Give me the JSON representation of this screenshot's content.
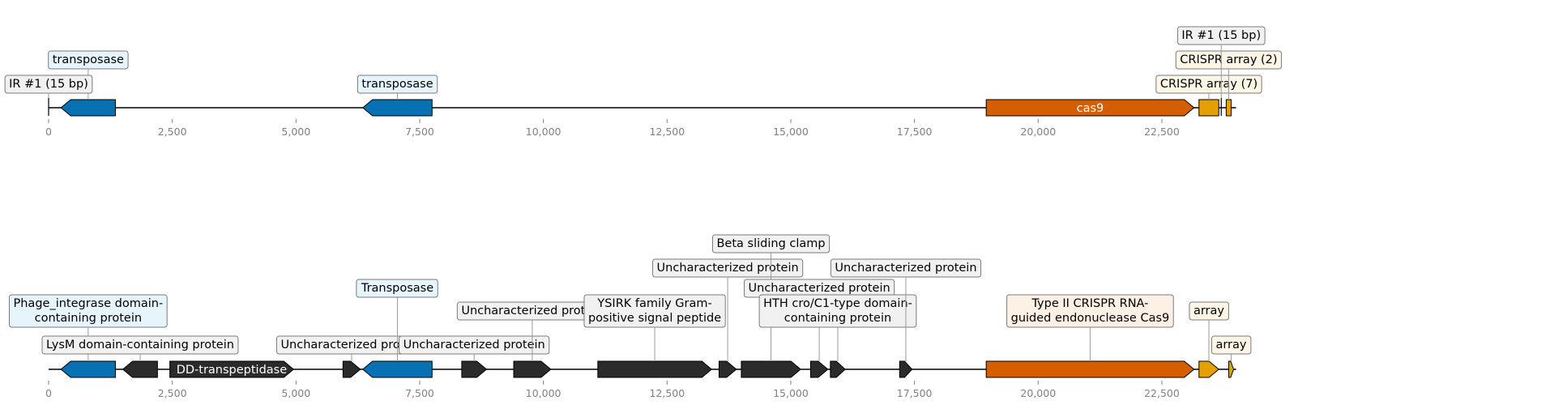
{
  "colors": {
    "transposase": "#0771b4",
    "cas9": "#d55e00",
    "crispr": "#e69f00",
    "other": "#2b2b2b",
    "backbone": "#000000",
    "tick": "#808080",
    "label_blue_bg": "#e6f4fb",
    "label_orange_bg": "#fdf0e4",
    "label_yellow_bg": "#fdf6e6",
    "label_gray_bg": "#f1f1f1"
  },
  "tracks": [
    {
      "id": "top",
      "length": 24000,
      "ticks": [
        0,
        2500,
        5000,
        7500,
        10000,
        12500,
        15000,
        17500,
        20000,
        22500
      ],
      "tick_labels": [
        "0",
        "2,500",
        "5,000",
        "7,500",
        "10,000",
        "12,500",
        "15,000",
        "17,500",
        "20,000",
        "22,500"
      ],
      "features": [
        {
          "name": "transposase-gene-1",
          "start": 250,
          "end": 1350,
          "strand": -1,
          "color": "transposase",
          "label": "transposase",
          "label_bg": "label_blue_bg",
          "level": 2
        },
        {
          "name": "transposase-gene-2",
          "start": 6350,
          "end": 7750,
          "strand": -1,
          "color": "transposase",
          "label": "transposase",
          "label_bg": "label_blue_bg",
          "level": 1
        },
        {
          "name": "cas9-gene",
          "start": 18950,
          "end": 23150,
          "strand": 1,
          "color": "cas9",
          "inner_label": "cas9"
        },
        {
          "name": "crispr-array-7",
          "start": 23250,
          "end": 23650,
          "strand": 0,
          "color": "crispr",
          "label": "CRISPR array (7)",
          "label_bg": "label_yellow_bg",
          "level": 1
        },
        {
          "name": "crispr-array-2",
          "start": 23800,
          "end": 23900,
          "strand": 0,
          "color": "crispr",
          "label": "CRISPR array (2)",
          "label_bg": "label_yellow_bg",
          "level": 2
        }
      ],
      "markers": [
        {
          "name": "ir-left",
          "pos": 0,
          "label": "IR #1 (15 bp)",
          "label_bg": "label_gray_bg",
          "level": 1
        },
        {
          "name": "ir-right",
          "pos": 23700,
          "label": "IR #1 (15 bp)",
          "label_bg": "label_gray_bg",
          "level": 3
        }
      ]
    },
    {
      "id": "bottom",
      "length": 24000,
      "ticks": [
        0,
        2500,
        5000,
        7500,
        10000,
        12500,
        15000,
        17500,
        20000,
        22500
      ],
      "tick_labels": [
        "0",
        "2,500",
        "5,000",
        "7,500",
        "10,000",
        "12,500",
        "15,000",
        "17,500",
        "20,000",
        "22,500"
      ],
      "features": [
        {
          "name": "phage-integrase-gene",
          "start": 250,
          "end": 1350,
          "strand": -1,
          "color": "transposase",
          "label": "Phage_integrase domain-\ncontaining protein",
          "label_bg": "label_blue_bg",
          "level": 2
        },
        {
          "name": "lysm-gene",
          "start": 1500,
          "end": 2200,
          "strand": -1,
          "color": "other",
          "label": "LysM domain-containing protein",
          "label_bg": "label_gray_bg",
          "level": 1
        },
        {
          "name": "dd-transpeptidase-gene",
          "start": 2450,
          "end": 4950,
          "strand": 1,
          "color": "other",
          "inner_label": "DD-transpeptidase"
        },
        {
          "name": "uncharacterized-gene-1",
          "start": 5950,
          "end": 6300,
          "strand": 1,
          "color": "other",
          "label": "Uncharacterized protein",
          "label_bg": "label_gray_bg",
          "level": 1
        },
        {
          "name": "transposase-gene-b",
          "start": 6350,
          "end": 7750,
          "strand": -1,
          "color": "transposase",
          "label": "Transposase",
          "label_bg": "label_blue_bg",
          "level": 3
        },
        {
          "name": "uncharacterized-gene-2",
          "start": 8350,
          "end": 8850,
          "strand": 1,
          "color": "other",
          "label": "Uncharacterized protein",
          "label_bg": "label_gray_bg",
          "level": 1
        },
        {
          "name": "uncharacterized-gene-3",
          "start": 9400,
          "end": 10150,
          "strand": 1,
          "color": "other",
          "label": "Uncharacterized protein",
          "label_bg": "label_gray_bg",
          "level": 2
        },
        {
          "name": "ysirk-gene",
          "start": 11100,
          "end": 13400,
          "strand": 1,
          "color": "other",
          "label": "YSIRK family Gram-\npositive signal peptide",
          "label_bg": "label_gray_bg",
          "level": 2
        },
        {
          "name": "uncharacterized-gene-4",
          "start": 13550,
          "end": 13900,
          "strand": 1,
          "color": "other",
          "label": "Uncharacterized protein",
          "label_bg": "label_gray_bg",
          "level": 4
        },
        {
          "name": "beta-sliding-clamp-gene",
          "start": 14000,
          "end": 15200,
          "strand": 1,
          "color": "other",
          "label": "Beta sliding clamp",
          "label_bg": "label_gray_bg",
          "level": 5
        },
        {
          "name": "uncharacterized-gene-5",
          "start": 15400,
          "end": 15750,
          "strand": 1,
          "color": "other",
          "label": "Uncharacterized protein",
          "label_bg": "label_gray_bg",
          "level": 3
        },
        {
          "name": "hth-cro-gene",
          "start": 15800,
          "end": 16100,
          "strand": 1,
          "color": "other",
          "label": "HTH cro/C1-type domain-\ncontaining protein",
          "label_bg": "label_gray_bg",
          "level": 2
        },
        {
          "name": "uncharacterized-gene-6",
          "start": 17200,
          "end": 17450,
          "strand": 1,
          "color": "other",
          "label": "Uncharacterized protein",
          "label_bg": "label_gray_bg",
          "level": 4
        },
        {
          "name": "cas9-gene-b",
          "start": 18950,
          "end": 23150,
          "strand": 1,
          "color": "cas9",
          "label": "Type II CRISPR RNA-\nguided endonuclease Cas9",
          "label_bg": "label_orange_bg",
          "level": 2
        },
        {
          "name": "crispr-array-b1",
          "start": 23250,
          "end": 23650,
          "strand": 1,
          "color": "crispr",
          "label": "array",
          "label_bg": "label_yellow_bg",
          "level": 2
        },
        {
          "name": "crispr-array-b2",
          "start": 23850,
          "end": 23950,
          "strand": 1,
          "color": "crispr",
          "label": "array",
          "label_bg": "label_yellow_bg",
          "level": 1
        }
      ],
      "markers": []
    }
  ]
}
